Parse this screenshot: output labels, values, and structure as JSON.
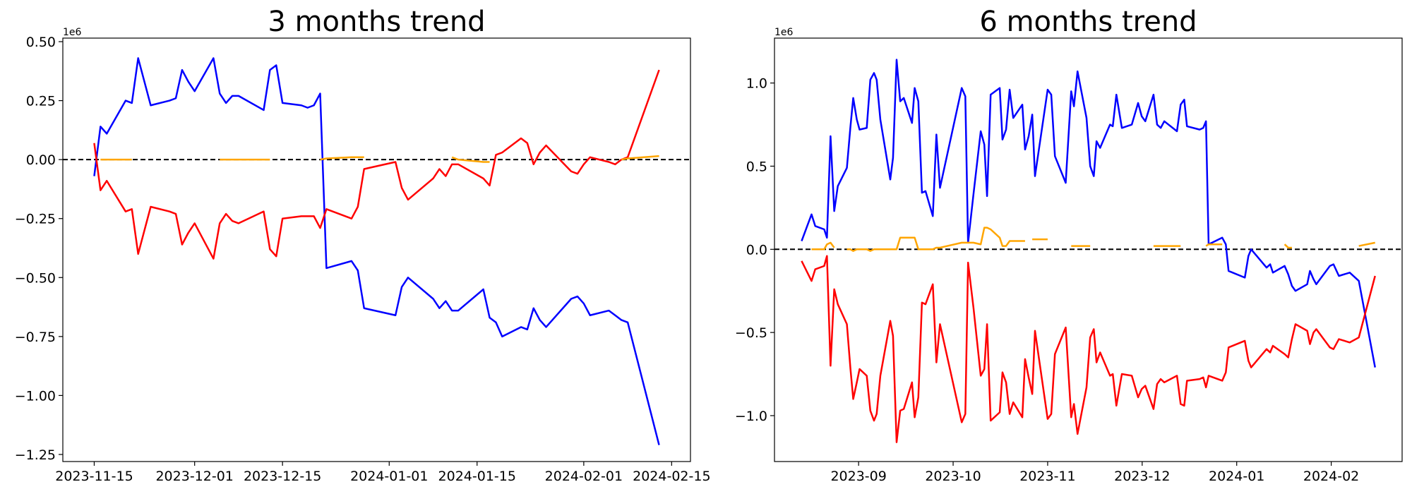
{
  "chart_data": [
    {
      "type": "line",
      "title": "3 months trend",
      "y_offset_label": "1e6",
      "x": [
        "2023-11-15",
        "2023-11-16",
        "2023-11-17",
        "2023-11-20",
        "2023-11-21",
        "2023-11-22",
        "2023-11-24",
        "2023-11-27",
        "2023-11-28",
        "2023-11-29",
        "2023-11-30",
        "2023-12-01",
        "2023-12-04",
        "2023-12-05",
        "2023-12-06",
        "2023-12-07",
        "2023-12-08",
        "2023-12-12",
        "2023-12-13",
        "2023-12-14",
        "2023-12-15",
        "2023-12-18",
        "2023-12-19",
        "2023-12-20",
        "2023-12-21",
        "2023-12-22",
        "2023-12-26",
        "2023-12-27",
        "2023-12-28",
        "2024-01-02",
        "2024-01-03",
        "2024-01-04",
        "2024-01-08",
        "2024-01-09",
        "2024-01-10",
        "2024-01-11",
        "2024-01-12",
        "2024-01-16",
        "2024-01-17",
        "2024-01-18",
        "2024-01-19",
        "2024-01-22",
        "2024-01-23",
        "2024-01-24",
        "2024-01-25",
        "2024-01-26",
        "2024-01-30",
        "2024-01-31",
        "2024-02-01",
        "2024-02-02",
        "2024-02-05",
        "2024-02-06",
        "2024-02-07",
        "2024-02-08",
        "2024-02-13"
      ],
      "series": [
        {
          "color": "#0000ff",
          "values": [
            -0.07,
            0.14,
            0.11,
            0.25,
            0.24,
            0.43,
            0.23,
            0.25,
            0.26,
            0.38,
            0.33,
            0.29,
            0.43,
            0.28,
            0.24,
            0.27,
            0.27,
            0.21,
            0.38,
            0.4,
            0.24,
            0.23,
            0.22,
            0.23,
            0.28,
            -0.46,
            -0.43,
            -0.47,
            -0.63,
            -0.66,
            -0.54,
            -0.5,
            -0.59,
            -0.63,
            -0.6,
            -0.64,
            -0.64,
            -0.55,
            -0.67,
            -0.69,
            -0.75,
            -0.71,
            -0.72,
            -0.63,
            -0.68,
            -0.71,
            -0.59,
            -0.58,
            -0.61,
            -0.66,
            -0.64,
            -0.66,
            -0.68,
            -0.69,
            -1.21
          ]
        },
        {
          "color": "#ff0000",
          "values": [
            0.07,
            -0.13,
            -0.09,
            -0.22,
            -0.21,
            -0.4,
            -0.2,
            -0.22,
            -0.23,
            -0.36,
            -0.31,
            -0.27,
            -0.42,
            -0.27,
            -0.23,
            -0.26,
            -0.27,
            -0.22,
            -0.38,
            -0.41,
            -0.25,
            -0.24,
            -0.24,
            -0.24,
            -0.29,
            -0.21,
            -0.25,
            -0.2,
            -0.04,
            -0.01,
            -0.12,
            -0.17,
            -0.08,
            -0.04,
            -0.07,
            -0.02,
            -0.02,
            -0.08,
            -0.11,
            0.02,
            0.03,
            0.09,
            0.07,
            -0.02,
            0.03,
            0.06,
            -0.05,
            -0.06,
            -0.02,
            0.01,
            -0.01,
            -0.02,
            0,
            0.01,
            0.38
          ]
        },
        {
          "color": "#ffa500",
          "values": [
            null,
            0,
            0,
            0,
            0,
            null,
            null,
            null,
            null,
            null,
            null,
            null,
            null,
            0,
            0,
            0,
            0,
            0,
            0,
            null,
            null,
            null,
            null,
            null,
            0,
            0.005,
            0.01,
            0.01,
            0.01,
            null,
            null,
            null,
            null,
            null,
            null,
            0.01,
            0,
            -0.01,
            -0.01,
            null,
            null,
            null,
            null,
            null,
            null,
            null,
            null,
            null,
            null,
            null,
            null,
            null,
            0,
            0.005,
            0.015
          ]
        }
      ],
      "xlim": [
        "2023-11-10",
        "2024-02-18"
      ],
      "xticks": [
        "2023-11-15",
        "2023-12-01",
        "2023-12-15",
        "2024-01-01",
        "2024-01-15",
        "2024-02-01",
        "2024-02-15"
      ],
      "ylim": [
        -1.28,
        0.515
      ],
      "yticks": [
        {
          "value": -1.25,
          "label": "−1.25"
        },
        {
          "value": -1,
          "label": "−1.00"
        },
        {
          "value": -0.75,
          "label": "−0.75"
        },
        {
          "value": -0.5,
          "label": "−0.50"
        },
        {
          "value": -0.25,
          "label": "−0.25"
        },
        {
          "value": 0,
          "label": "0.00"
        },
        {
          "value": 0.25,
          "label": "0.25"
        },
        {
          "value": 0.5,
          "label": "0.50"
        }
      ],
      "hline": 0
    },
    {
      "type": "line",
      "title": "6 months trend",
      "y_offset_label": "1e6",
      "x": [
        8.397,
        8.502,
        8.541,
        8.636,
        8.665,
        8.703,
        8.742,
        8.78,
        8.876,
        8.914,
        8.943,
        8.981,
        9.01,
        9.086,
        9.124,
        9.163,
        9.191,
        9.23,
        9.335,
        9.364,
        9.402,
        9.44,
        9.478,
        9.565,
        9.593,
        9.632,
        9.67,
        9.708,
        9.785,
        9.823,
        9.861,
        10.091,
        10.129,
        10.158,
        10.215,
        10.292,
        10.33,
        10.359,
        10.397,
        10.493,
        10.522,
        10.56,
        10.598,
        10.636,
        10.732,
        10.761,
        10.799,
        10.837,
        10.866,
        11.0,
        11.038,
        11.077,
        11.191,
        11.249,
        11.278,
        11.316,
        11.411,
        11.45,
        11.488,
        11.517,
        11.555,
        11.66,
        11.689,
        11.727,
        11.785,
        11.89,
        11.957,
        11.995,
        12.033,
        12.12,
        12.158,
        12.196,
        12.234,
        12.368,
        12.407,
        12.445,
        12.474,
        12.608,
        12.646,
        12.675,
        12.703,
        12.847,
        12.885,
        12.914,
        13.086,
        13.124,
        13.153,
        13.316,
        13.354,
        13.383,
        13.507,
        13.545,
        13.584,
        13.622,
        13.746,
        13.775,
        13.813,
        13.842,
        13.986,
        14.024,
        14.081,
        14.196,
        14.292,
        14.464
      ],
      "series": [
        {
          "color": "#0000ff",
          "values": [
            0.05,
            0.21,
            0.14,
            0.12,
            0.07,
            0.68,
            0.23,
            0.38,
            0.49,
            0.74,
            0.91,
            0.78,
            0.72,
            0.73,
            1.02,
            1.06,
            1.02,
            0.78,
            0.42,
            0.55,
            1.14,
            0.89,
            0.91,
            0.76,
            0.97,
            0.89,
            0.34,
            0.35,
            0.2,
            0.69,
            0.37,
            0.97,
            0.92,
            0.04,
            0.33,
            0.71,
            0.63,
            0.32,
            0.93,
            0.97,
            0.66,
            0.72,
            0.96,
            0.79,
            0.87,
            0.6,
            0.68,
            0.81,
            0.44,
            0.96,
            0.93,
            0.56,
            0.4,
            0.95,
            0.86,
            1.07,
            0.79,
            0.5,
            0.44,
            0.65,
            0.61,
            0.75,
            0.74,
            0.93,
            0.73,
            0.75,
            0.88,
            0.8,
            0.77,
            0.93,
            0.75,
            0.73,
            0.77,
            0.71,
            0.87,
            0.9,
            0.74,
            0.72,
            0.73,
            0.77,
            0.03,
            0.07,
            0.03,
            -0.13,
            -0.17,
            -0.04,
            0,
            -0.11,
            -0.09,
            -0.14,
            -0.1,
            -0.15,
            -0.22,
            -0.25,
            -0.21,
            -0.13,
            -0.18,
            -0.21,
            -0.1,
            -0.09,
            -0.16,
            -0.14,
            -0.19,
            -0.71
          ]
        },
        {
          "color": "#ff0000",
          "values": [
            -0.07,
            -0.19,
            -0.12,
            -0.1,
            -0.04,
            -0.7,
            -0.24,
            -0.33,
            -0.45,
            -0.72,
            -0.9,
            -0.8,
            -0.72,
            -0.76,
            -0.97,
            -1.03,
            -0.99,
            -0.76,
            -0.43,
            -0.52,
            -1.16,
            -0.97,
            -0.96,
            -0.8,
            -1.01,
            -0.89,
            -0.32,
            -0.33,
            -0.21,
            -0.68,
            -0.45,
            -1.04,
            -0.99,
            -0.08,
            -0.35,
            -0.76,
            -0.72,
            -0.45,
            -1.03,
            -0.98,
            -0.74,
            -0.8,
            -0.99,
            -0.92,
            -1.01,
            -0.66,
            -0.77,
            -0.87,
            -0.49,
            -1.02,
            -0.99,
            -0.63,
            -0.47,
            -1.01,
            -0.93,
            -1.11,
            -0.83,
            -0.53,
            -0.48,
            -0.68,
            -0.62,
            -0.76,
            -0.75,
            -0.94,
            -0.75,
            -0.76,
            -0.89,
            -0.84,
            -0.82,
            -0.96,
            -0.81,
            -0.78,
            -0.8,
            -0.76,
            -0.93,
            -0.94,
            -0.79,
            -0.78,
            -0.77,
            -0.83,
            -0.76,
            -0.79,
            -0.74,
            -0.59,
            -0.55,
            -0.67,
            -0.71,
            -0.6,
            -0.62,
            -0.58,
            -0.63,
            -0.65,
            -0.54,
            -0.45,
            -0.49,
            -0.57,
            -0.5,
            -0.48,
            -0.59,
            -0.6,
            -0.54,
            -0.56,
            -0.53,
            -0.16
          ]
        },
        {
          "color": "#ffa500",
          "values": [
            null,
            0,
            0,
            0,
            0.03,
            0.04,
            0.01,
            null,
            0,
            0,
            -0.01,
            0,
            0,
            0,
            -0.01,
            0,
            0,
            0,
            0,
            0,
            0,
            0.07,
            0.07,
            0.07,
            0.07,
            0,
            0,
            0,
            0,
            0.01,
            0.01,
            0.04,
            0.04,
            0.04,
            0.04,
            0.03,
            0.13,
            0.13,
            0.12,
            0.07,
            0.02,
            0.02,
            0.05,
            0.05,
            0.05,
            0.05,
            null,
            0.06,
            0.06,
            0.06,
            null,
            null,
            null,
            0.02,
            0.02,
            0.02,
            0.02,
            0.02,
            null,
            null,
            null,
            null,
            null,
            null,
            null,
            null,
            null,
            null,
            null,
            0.02,
            0.02,
            0.02,
            0.02,
            0.02,
            0.02,
            null,
            null,
            null,
            null,
            0.02,
            0.03,
            0.03,
            null,
            null,
            null,
            null,
            null,
            null,
            null,
            null,
            0.03,
            0.01,
            0.01,
            null,
            null,
            null,
            null,
            null,
            null,
            null,
            null,
            null,
            0.02,
            0.04
          ]
        }
      ],
      "xlim": [
        8.11,
        14.75
      ],
      "xticks": [
        {
          "value": 9,
          "label": "2023-09"
        },
        {
          "value": 10,
          "label": "2023-10"
        },
        {
          "value": 11,
          "label": "2023-11"
        },
        {
          "value": 12,
          "label": "2023-12"
        },
        {
          "value": 13,
          "label": "2024-01"
        },
        {
          "value": 14,
          "label": "2024-02"
        }
      ],
      "ylim": [
        -1.276,
        1.27
      ],
      "yticks": [
        {
          "value": -1,
          "label": "−1.0"
        },
        {
          "value": -0.5,
          "label": "−0.5"
        },
        {
          "value": 0,
          "label": "0.0"
        },
        {
          "value": 0.5,
          "label": "0.5"
        },
        {
          "value": 1,
          "label": "1.0"
        }
      ],
      "hline": 0
    }
  ]
}
